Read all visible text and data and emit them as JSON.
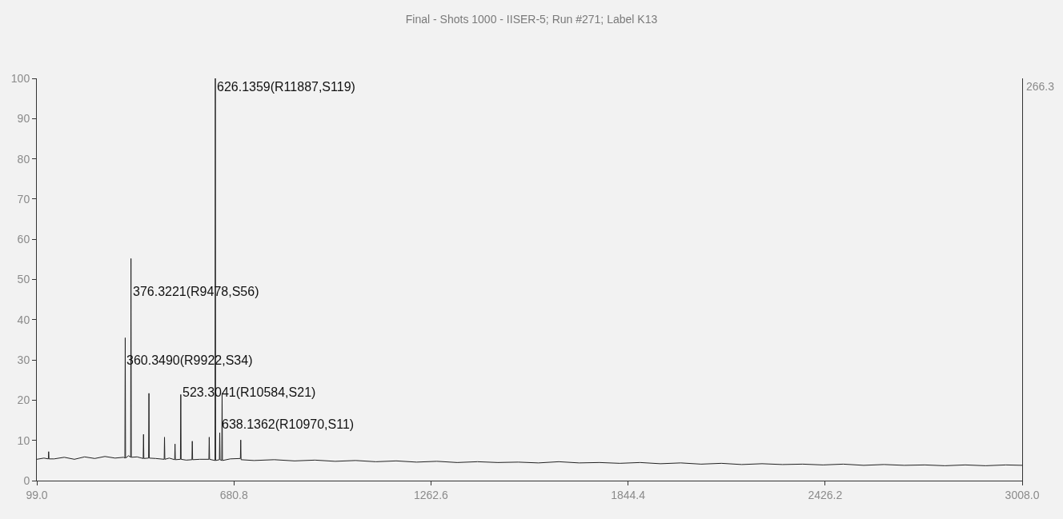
{
  "chart_data": {
    "type": "line",
    "title": "Final - Shots 1000 - IISER-5; Run #271; Label K13",
    "series": [
      {
        "color": "#222222",
        "x": [
          99,
          120,
          133,
          134,
          135,
          150,
          180,
          210,
          240,
          270,
          300,
          330,
          355,
          359,
          360,
          361,
          370,
          376,
          377,
          378,
          395,
          413,
          414,
          415,
          429,
          430,
          431,
          450,
          475,
          476,
          477,
          490,
          506,
          507,
          508,
          523,
          524,
          525,
          540,
          557,
          558,
          559,
          580,
          607,
          608,
          609,
          625,
          626,
          627,
          638,
          639,
          640,
          645,
          646,
          647,
          670,
          700,
          701,
          702,
          740,
          800,
          860,
          920,
          980,
          1040,
          1100,
          1160,
          1220,
          1280,
          1340,
          1400,
          1460,
          1520,
          1580,
          1640,
          1700,
          1760,
          1820,
          1880,
          1940,
          2000,
          2060,
          2120,
          2180,
          2240,
          2300,
          2360,
          2420,
          2480,
          2540,
          2600,
          2660,
          2720,
          2780,
          2840,
          2900,
          2960,
          3008
        ],
        "values": [
          5.3,
          5.6,
          5.4,
          7.2,
          5.4,
          5.4,
          5.8,
          5.3,
          5.9,
          5.5,
          6.0,
          5.6,
          5.8,
          5.6,
          35.5,
          5.6,
          6.2,
          5.8,
          55.2,
          5.8,
          5.9,
          5.5,
          11.5,
          5.5,
          5.6,
          21.7,
          5.6,
          5.5,
          5.3,
          10.8,
          5.3,
          5.6,
          5.2,
          9.1,
          5.2,
          5.3,
          21.4,
          5.3,
          5.1,
          5.2,
          9.8,
          5.2,
          5.3,
          5.3,
          10.8,
          5.3,
          5.0,
          100,
          5.0,
          5.2,
          11.9,
          5.2,
          5.0,
          21.7,
          5.0,
          5.4,
          5.5,
          10.1,
          5.2,
          5.0,
          5.2,
          4.9,
          5.1,
          4.8,
          5.0,
          4.7,
          4.9,
          4.6,
          4.8,
          4.5,
          4.7,
          4.5,
          4.6,
          4.4,
          4.7,
          4.4,
          4.5,
          4.3,
          4.5,
          4.2,
          4.4,
          4.1,
          4.3,
          4.0,
          4.2,
          4.0,
          4.1,
          3.9,
          4.1,
          3.8,
          4.0,
          3.8,
          3.9,
          3.7,
          3.9,
          3.7,
          3.9,
          3.8
        ]
      }
    ],
    "xlim": [
      99,
      3008
    ],
    "xticks": [
      {
        "value": 99,
        "label": "99.0"
      },
      {
        "value": 680.8,
        "label": "680.8"
      },
      {
        "value": 1262.6,
        "label": "1262.6"
      },
      {
        "value": 1844.4,
        "label": "1844.4"
      },
      {
        "value": 2426.2,
        "label": "2426.2"
      },
      {
        "value": 3008,
        "label": "3008.0"
      }
    ],
    "ylim": [
      0,
      100
    ],
    "yticks": [
      0,
      10,
      20,
      30,
      40,
      50,
      60,
      70,
      80,
      90,
      100
    ],
    "annotations": [
      "266.3",
      {
        "text": "626.1359(R11887,S119)",
        "x": 626,
        "y": 98
      },
      {
        "text": "376.3221(R9478,S56)",
        "x": 377,
        "y": 47
      },
      {
        "text": "360.3490(R9922,S34)",
        "x": 360,
        "y": 30
      },
      {
        "text": "523.3041(R10584,S21)",
        "x": 524,
        "y": 22
      },
      {
        "text": "638.1362(R10970,S11)",
        "x": 639,
        "y": 14
      }
    ]
  }
}
